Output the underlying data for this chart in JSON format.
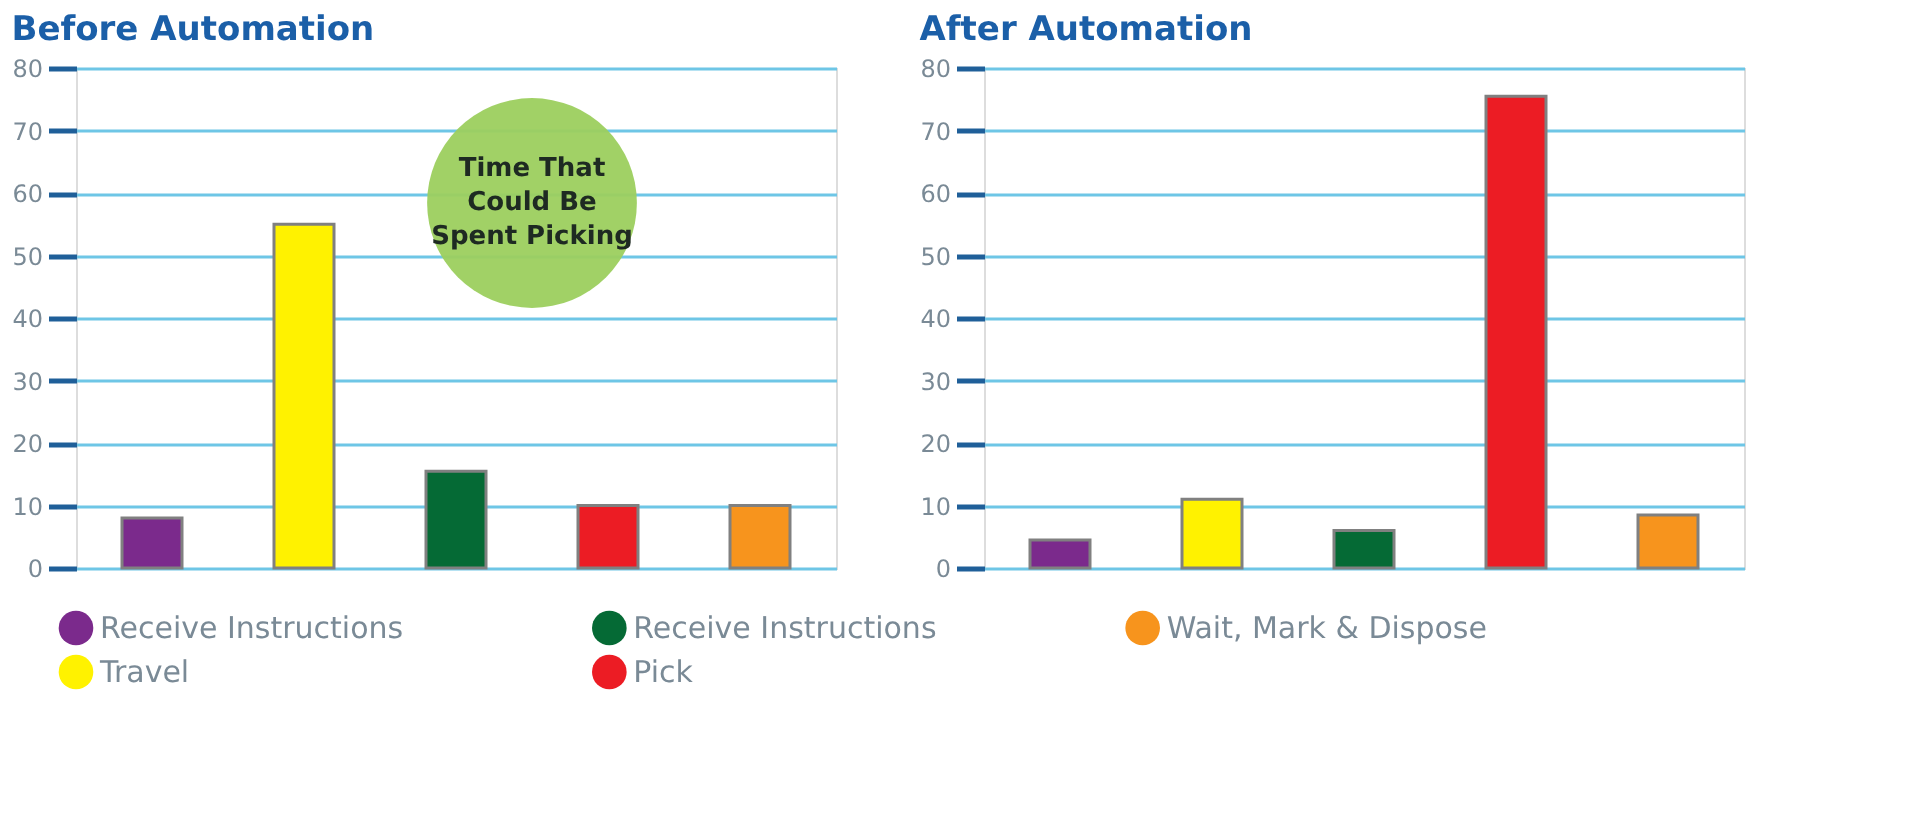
{
  "chart_data": [
    {
      "type": "bar",
      "title": "Before Automation",
      "categories": [
        null,
        null,
        null,
        null,
        null
      ],
      "ylim": [
        0,
        80
      ],
      "yticks": [
        0,
        10,
        20,
        30,
        40,
        50,
        60,
        70,
        80
      ],
      "grid": "y",
      "tick_labels": "y",
      "legend": "bottom",
      "annotations": [
        "Time That Could Be Spent Picking"
      ],
      "series": [
        {
          "name": "Receive Instructions",
          "color": "#7b2a8c",
          "values": [
            8,
            null,
            null,
            null,
            null
          ]
        },
        {
          "name": "Travel",
          "color": "#fff200",
          "values": [
            null,
            55,
            null,
            null,
            null
          ]
        },
        {
          "name": "Receive Instructions",
          "color": "#056a35",
          "values": [
            null,
            null,
            15.5,
            null,
            null
          ]
        },
        {
          "name": "Pick",
          "color": "#ec1c24",
          "values": [
            null,
            null,
            null,
            10,
            null
          ]
        },
        {
          "name": "Wait, Mark & Dispose",
          "color": "#f7941d",
          "values": [
            null,
            null,
            null,
            null,
            10
          ]
        }
      ]
    },
    {
      "type": "bar",
      "title": "After Automation",
      "categories": [
        null,
        null,
        null,
        null,
        null
      ],
      "ylim": [
        0,
        80
      ],
      "yticks": [
        0,
        10,
        20,
        30,
        40,
        50,
        60,
        70,
        80
      ],
      "grid": "y",
      "tick_labels": "y",
      "series": [
        {
          "color": "#7b2a8c",
          "values": [
            4.5,
            null,
            null,
            null,
            null
          ]
        },
        {
          "color": "#fff200",
          "values": [
            null,
            11,
            null,
            null,
            null
          ]
        },
        {
          "color": "#056a35",
          "values": [
            null,
            null,
            6,
            null,
            null
          ]
        },
        {
          "color": "#ec1c24",
          "values": [
            null,
            null,
            null,
            75.5,
            null
          ]
        },
        {
          "color": "#f7941d",
          "values": [
            null,
            null,
            null,
            null,
            8.5
          ]
        }
      ]
    }
  ]
}
